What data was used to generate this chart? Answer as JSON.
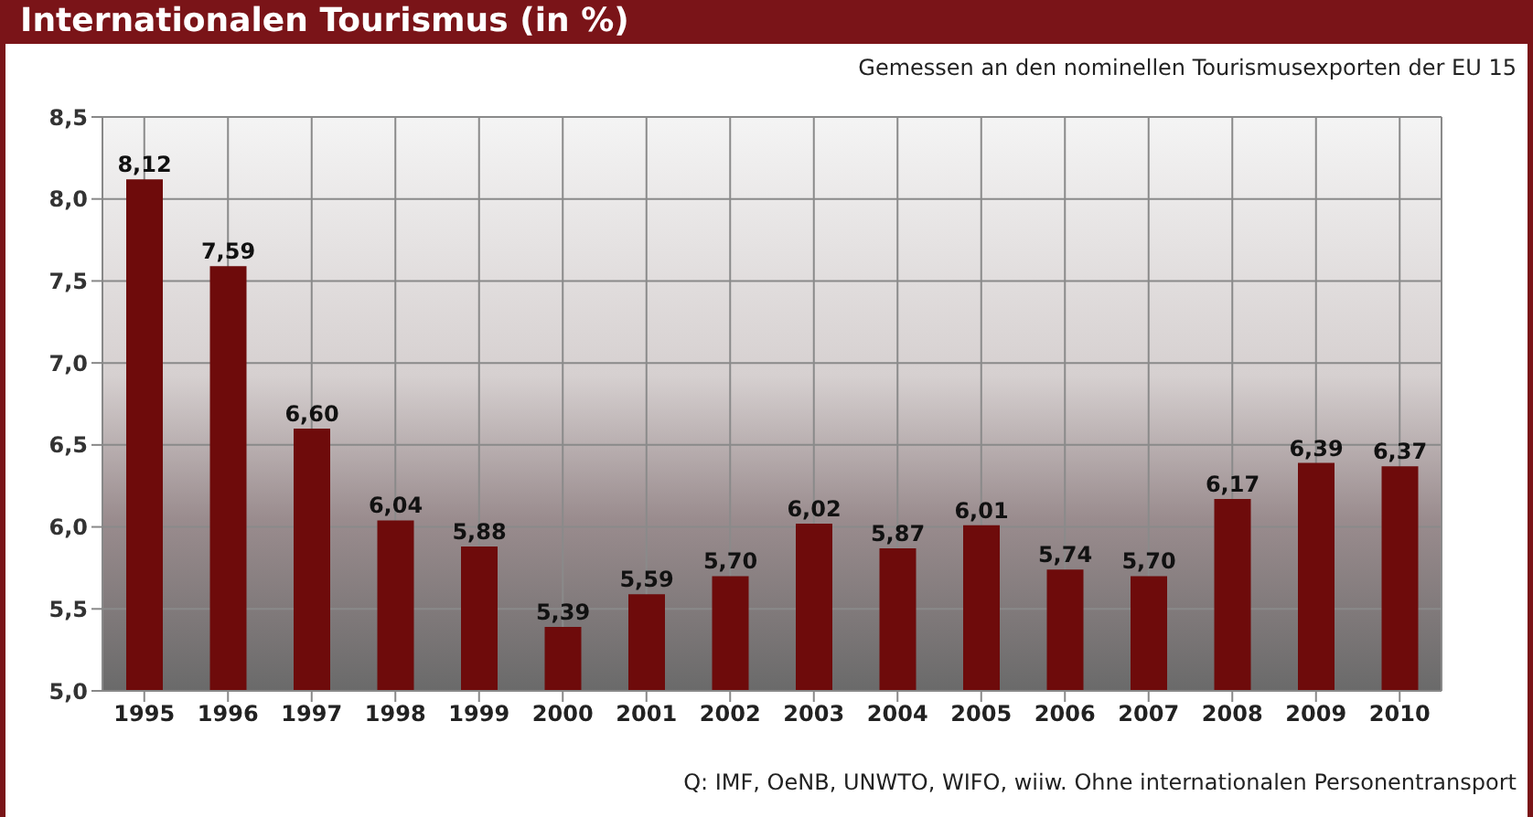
{
  "chart_data": {
    "type": "bar",
    "title": "Internationalen Tourismus (in %)",
    "subtitle": "Gemessen an den nominellen Tourismusexporten der EU 15",
    "annotations": [
      "Q: IMF, OeNB, UNWTO, WIFO, wiiw. Ohne internationalen Personentransport"
    ],
    "categories": [
      "1995",
      "1996",
      "1997",
      "1998",
      "1999",
      "2000",
      "2001",
      "2002",
      "2003",
      "2004",
      "2005",
      "2006",
      "2007",
      "2008",
      "2009",
      "2010"
    ],
    "values": [
      8.12,
      7.59,
      6.6,
      6.04,
      5.88,
      5.39,
      5.59,
      5.7,
      6.02,
      5.87,
      6.01,
      5.74,
      5.7,
      6.17,
      6.39,
      6.37
    ],
    "value_labels": [
      "8,12",
      "7,59",
      "6,60",
      "6,04",
      "5,88",
      "5,39",
      "5,59",
      "5,70",
      "6,02",
      "5,87",
      "6,01",
      "5,74",
      "5,70",
      "6,17",
      "6,39",
      "6,37"
    ],
    "color": "#6e0b0b",
    "ylim": [
      5,
      8.5
    ],
    "yticks": [
      {
        "value": 5,
        "label": "5,0"
      },
      {
        "value": 5.5,
        "label": "5,5"
      },
      {
        "value": 6,
        "label": "6,0"
      },
      {
        "value": 6.5,
        "label": "6,5"
      },
      {
        "value": 7,
        "label": "7,0"
      },
      {
        "value": 7.5,
        "label": "7,5"
      },
      {
        "value": 8,
        "label": "8,0"
      },
      {
        "value": 8.5,
        "label": "8,5"
      }
    ],
    "grid": true
  }
}
